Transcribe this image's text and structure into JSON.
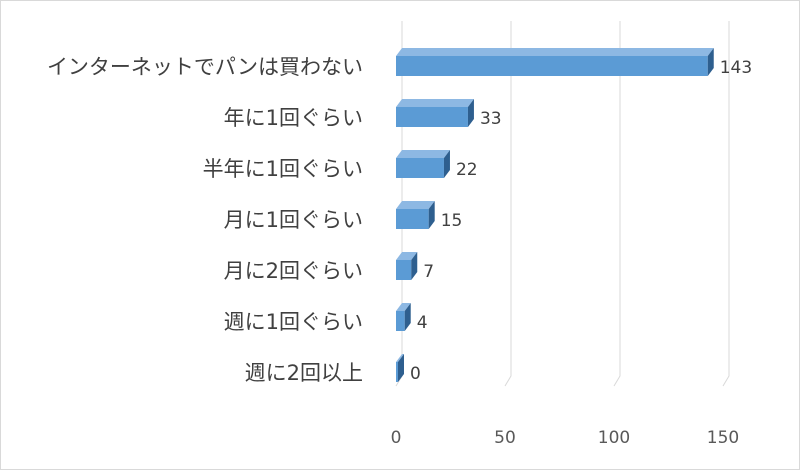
{
  "chart_data": {
    "type": "bar",
    "orientation": "horizontal",
    "style": "3d",
    "categories": [
      "インターネットでパンは買わない",
      "年に1回ぐらい",
      "半年に1回ぐらい",
      "月に1回ぐらい",
      "月に2回ぐらい",
      "週に1回ぐらい",
      "週に2回以上"
    ],
    "values": [
      143,
      33,
      22,
      15,
      7,
      4,
      0
    ],
    "xlim": [
      0,
      150
    ],
    "xticks": [
      0,
      50,
      100,
      150
    ],
    "grid": true,
    "legend": "none",
    "colors": {
      "bar_front": "#5b9bd5",
      "bar_top": "#8db8e3",
      "bar_side": "#2e5f8f",
      "gridline": "#d9d9d9"
    }
  }
}
